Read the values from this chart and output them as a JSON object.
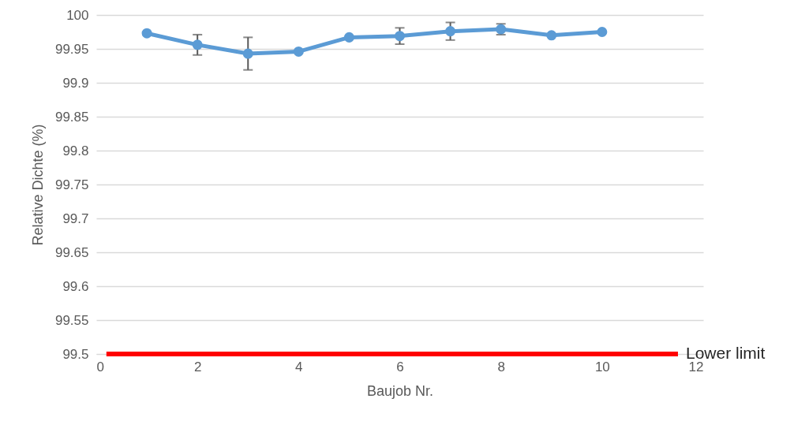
{
  "chart_data": {
    "type": "line",
    "xlabel": "Baujob Nr.",
    "ylabel": "Relative Dichte (%)",
    "xlim": [
      0,
      12
    ],
    "xticks": [
      0,
      2,
      4,
      6,
      8,
      10,
      12
    ],
    "ylim": [
      99.5,
      100
    ],
    "yticks": [
      99.5,
      99.55,
      99.6,
      99.65,
      99.7,
      99.75,
      99.8,
      99.85,
      99.9,
      99.95,
      100
    ],
    "grid": "y",
    "marker": "circle",
    "x": [
      1,
      2,
      3,
      4,
      5,
      6,
      7,
      8,
      9,
      10
    ],
    "series": [
      {
        "color": "#5b9bd5",
        "values": [
          99.973,
          99.956,
          99.943,
          99.946,
          99.967,
          99.969,
          99.976,
          99.979,
          99.97,
          99.975
        ],
        "errors": [
          null,
          0.015,
          0.024,
          null,
          null,
          0.012,
          0.013,
          0.008,
          null,
          null
        ]
      },
      {
        "name": "Lower limit",
        "color": "#ff0000",
        "x": [
          0.2,
          11.5
        ],
        "values": [
          99.5,
          99.5
        ],
        "marker": "none"
      }
    ]
  }
}
